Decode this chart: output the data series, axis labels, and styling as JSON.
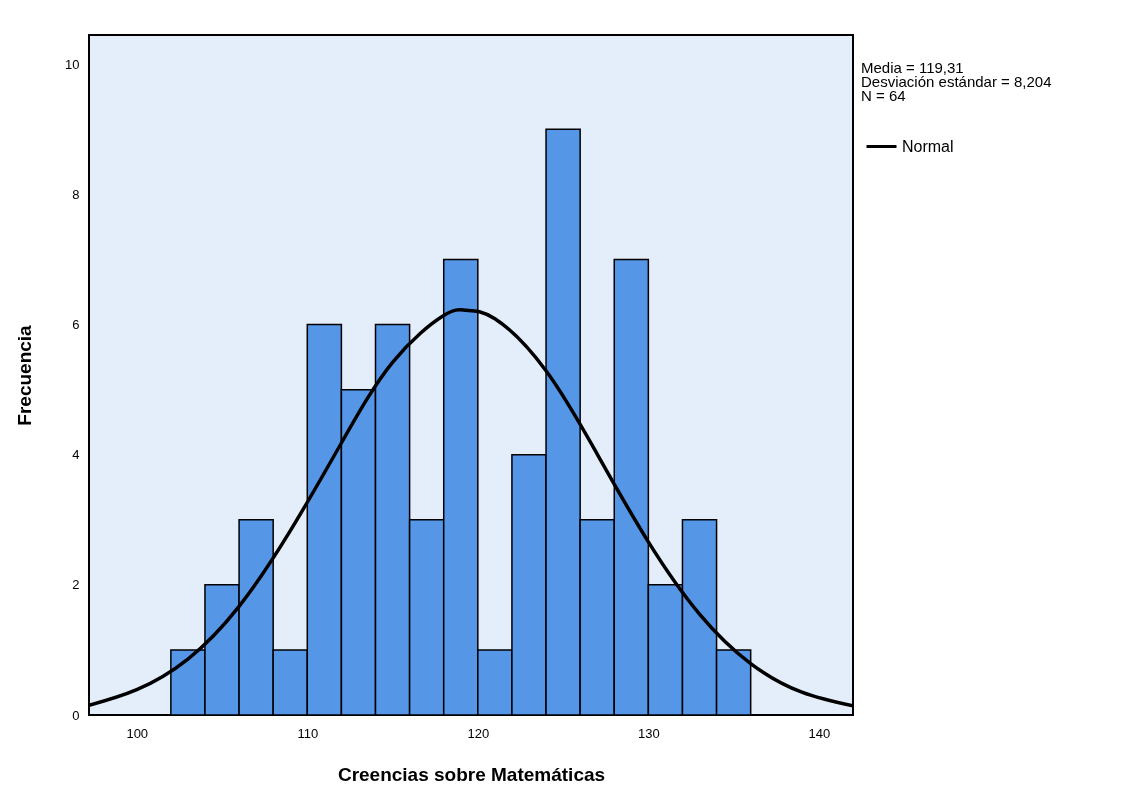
{
  "chart_data": {
    "type": "histogram",
    "xlabel": "Creencias sobre Matemáticas",
    "ylabel": "Frecuencia",
    "bins": [
      102,
      104,
      106,
      108,
      110,
      112,
      114,
      116,
      118,
      120,
      122,
      124,
      126,
      128,
      130,
      132,
      134,
      136
    ],
    "values": [
      1,
      2,
      3,
      1,
      6,
      5,
      6,
      3,
      7,
      1,
      4,
      9,
      3,
      7,
      2,
      3,
      1
    ],
    "color": "#5596e6",
    "series": [
      {
        "name": "Normal",
        "type": "line",
        "color": "#000000",
        "x": [
          97.2,
          100,
          103,
          106,
          109,
          112,
          115,
          118,
          119.31,
          121,
          124,
          127,
          130,
          133,
          136,
          139,
          142
        ],
        "values": [
          0.15,
          0.39,
          0.86,
          1.67,
          2.83,
          4.18,
          5.42,
          6.14,
          6.22,
          6.09,
          5.29,
          4.01,
          2.66,
          1.55,
          0.79,
          0.35,
          0.14
        ]
      }
    ],
    "xlim": [
      97.2,
      142.0
    ],
    "xticks": [
      100,
      110,
      120,
      130,
      140
    ],
    "ylim": [
      0,
      10.45
    ],
    "yticks": [
      0,
      2,
      4,
      6,
      8,
      10
    ],
    "grid": false,
    "legend": "right",
    "annotations": [
      "Media = 119,31",
      "Desviación estándar = 8,204",
      "N = 64"
    ]
  }
}
